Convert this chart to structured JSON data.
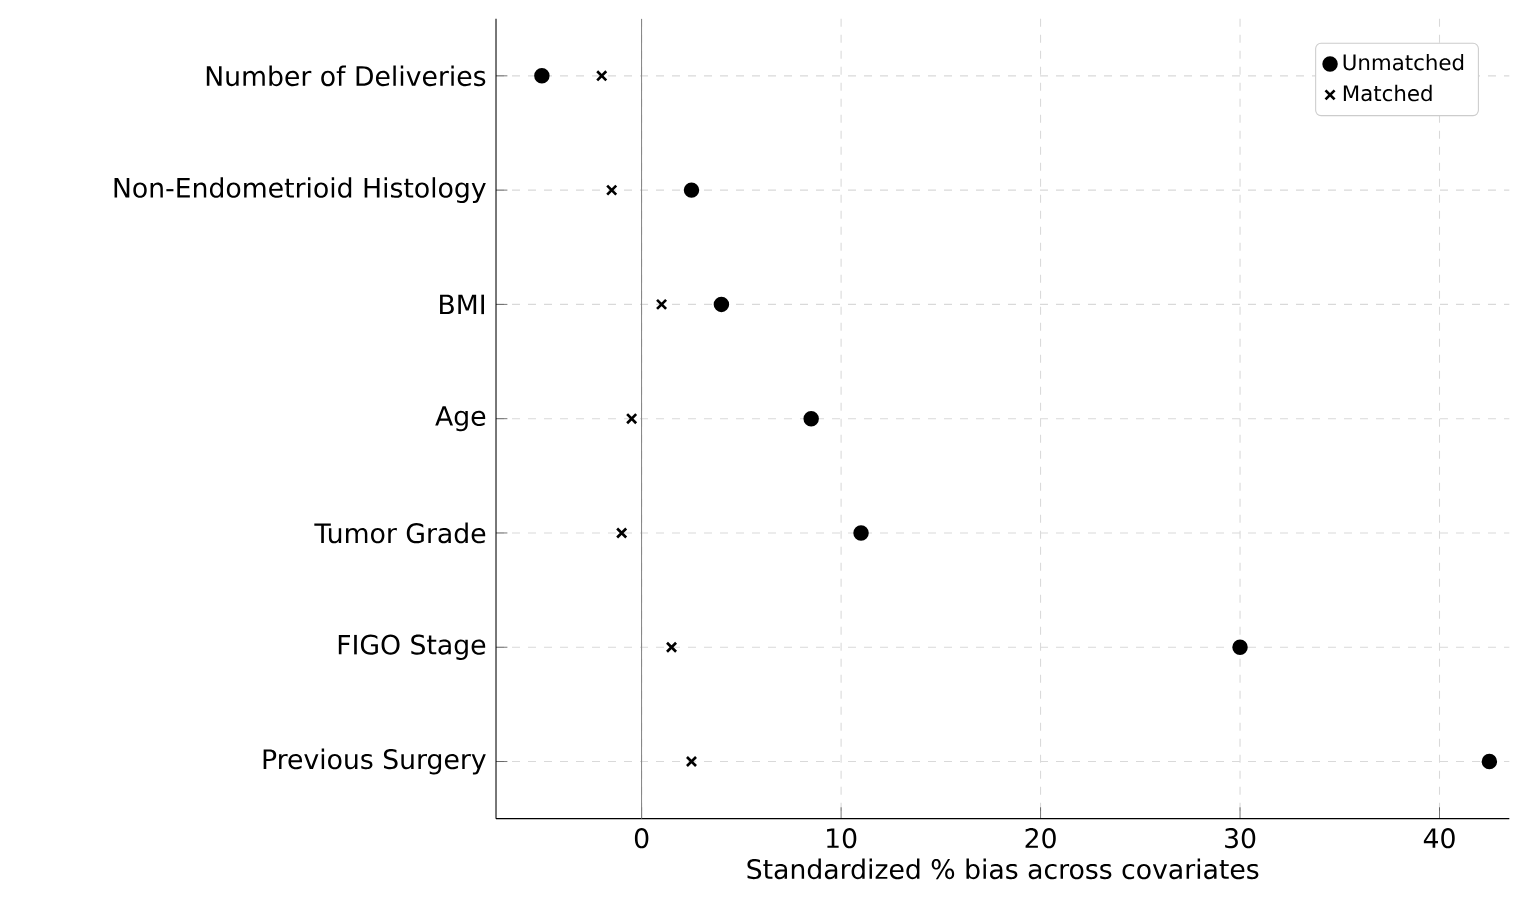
{
  "chart_data": {
    "type": "scatter",
    "orientation": "horizontal",
    "xlabel": "Standardized % bias across covariates",
    "categories": [
      "Number of Deliveries",
      "Non-Endometrioid Histology",
      "BMI",
      "Age",
      "Tumor Grade",
      "FIGO Stage",
      "Previous Surgery"
    ],
    "series": [
      {
        "name": "Unmatched",
        "color": "#000000",
        "marker": "circle",
        "values": [
          -5,
          2.5,
          4,
          8.5,
          11,
          30,
          42.5
        ]
      },
      {
        "name": "Matched",
        "color": "#000000",
        "marker": "cross",
        "values": [
          -2,
          -1.5,
          1,
          -0.5,
          -1,
          1.5,
          2.5
        ]
      }
    ],
    "xlim": [
      -7.3,
      43.5
    ],
    "xticks": [
      0,
      10,
      20,
      30,
      40
    ],
    "grid": true,
    "legend": "top right",
    "ref_lines": [
      {
        "axis": "x",
        "value": 0,
        "color": "#808080"
      }
    ]
  }
}
